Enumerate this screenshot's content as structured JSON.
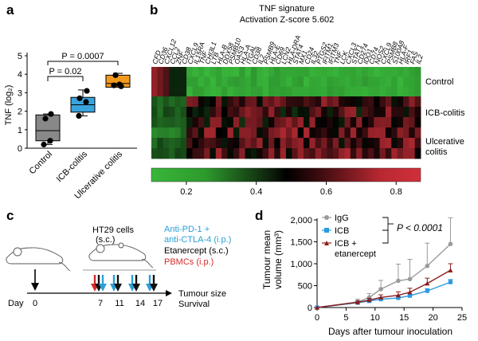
{
  "panels": {
    "a": {
      "letter": "a",
      "ylabel": "TNF (log₂)",
      "yticks": [
        "0",
        "1",
        "2",
        "3",
        "4",
        "5"
      ],
      "categories": [
        "Control",
        "ICB-colitis",
        "Ulcerative colitis"
      ],
      "comparison1": "P = 0.02",
      "comparison2": "P = 0.0007"
    },
    "b": {
      "letter": "b",
      "title_line1": "TNF signature",
      "title_line2": "Activation Z-score 5.602",
      "genes": [
        "CFD",
        "CD36",
        "CXCL12",
        "CCL2",
        "ZNF",
        "CD38",
        "CXCL9",
        "IL15RA",
        "TNF",
        "CHI3L1",
        "LTB",
        "HLA-B",
        "DDX58",
        "PSMB10",
        "OAS3",
        "HLA-A",
        "ITGAL",
        "CD38",
        "IL2",
        "PSMB9",
        "HLA-E",
        "CD69",
        "LCN2",
        "HLA-DRA",
        "STAT4",
        "MX1",
        "CD24",
        "IL32",
        "PTGS2",
        "IFITM1",
        "IFITM3",
        "TNF",
        "LCK",
        "CXCL3",
        "STAT1",
        "CD274",
        "IDO1",
        "CD74",
        "NOS2",
        "CXCL9",
        "PSMB8",
        "S100A8",
        "HLA-F",
        "IRF1",
        "FAS",
        "IL2"
      ],
      "rows": [
        "Control",
        "ICB-colitis",
        "Ulcerative colitis"
      ],
      "scale_ticks": [
        "0.2",
        "0.4",
        "0.6",
        "0.8"
      ]
    },
    "c": {
      "letter": "c",
      "mouse_label_line1": "HT29 cells",
      "mouse_label_line2": "(s.c.)",
      "day_label": "Day",
      "days": [
        "0",
        "7",
        "11",
        "14",
        "17"
      ],
      "legend": {
        "anti_line1": "Anti-PD-1 +",
        "anti_line2": "anti-CTLA-4 (i.p.)",
        "etanercept": "Etanercept (s.c.)",
        "pbmc": "PBMCs (i.p.)"
      },
      "outcome_line1": "Tumour size",
      "outcome_line2": "Survival"
    },
    "d": {
      "letter": "d",
      "ylabel_line1": "Tumour mean",
      "ylabel_line2": "volume (mm³)",
      "xlabel": "Days after tumour inoculation",
      "pvalue": "P < 0.0001",
      "legend": [
        "IgG",
        "ICB",
        "ICB +",
        "etanercept"
      ]
    }
  },
  "colors": {
    "heat_low": "#38b63a",
    "heat_mid": "#000000",
    "heat_high": "#d0303a",
    "box_a_control": "#888888",
    "box_a_icb": "#3aa3dd",
    "box_a_uc": "#f39a1e",
    "anti_text": "#2a9fd8",
    "pbmc_text": "#d52b2b",
    "igg": "#9a9a9a",
    "icb": "#2b9ae0",
    "icb_etanercept": "#8b1d1d"
  },
  "chart_data": [
    {
      "type": "box",
      "ylabel": "TNF (log₂)",
      "ylim": [
        0,
        5
      ],
      "categories": [
        "Control",
        "ICB-colitis",
        "Ulcerative colitis"
      ],
      "boxes": [
        {
          "name": "Control",
          "min": 0.2,
          "q1": 0.4,
          "median": 0.95,
          "q3": 1.8,
          "max": 1.85,
          "points": [
            0.2,
            0.4,
            1.6,
            1.85
          ]
        },
        {
          "name": "ICB-colitis",
          "min": 1.75,
          "q1": 1.95,
          "median": 2.35,
          "q3": 2.75,
          "max": 3.15,
          "points": [
            1.75,
            2.5,
            2.7,
            3.1
          ]
        },
        {
          "name": "Ulcerative colitis",
          "min": 3.3,
          "q1": 3.3,
          "median": 3.5,
          "q3": 3.95,
          "max": 4.05,
          "points": [
            3.35,
            3.4,
            3.45,
            3.95
          ]
        }
      ],
      "annotations": [
        "P = 0.02",
        "P = 0.0007"
      ]
    },
    {
      "type": "heatmap",
      "title": "TNF signature",
      "subtitle": "Activation Z-score 5.602",
      "rows": [
        "Control",
        "ICB-colitis",
        "Ulcerative colitis"
      ],
      "colorbar_ticks": [
        0.2,
        0.4,
        0.6,
        0.8
      ],
      "colorbar_range": [
        0.1,
        0.87
      ]
    },
    {
      "type": "line",
      "xlabel": "Days after tumour inoculation",
      "ylabel": "Tumour mean volume (mm³)",
      "xlim": [
        0,
        25
      ],
      "ylim": [
        0,
        2000
      ],
      "xticks": [
        0,
        5,
        10,
        15,
        20,
        25
      ],
      "yticks": [
        0,
        500,
        1000,
        1500,
        2000
      ],
      "series": [
        {
          "name": "IgG",
          "x": [
            0,
            7,
            9,
            11,
            14,
            16,
            19,
            23
          ],
          "y": [
            0,
            130,
            230,
            420,
            610,
            650,
            950,
            1450
          ],
          "err": [
            0,
            60,
            90,
            200,
            380,
            450,
            520,
            600
          ]
        },
        {
          "name": "ICB",
          "x": [
            0,
            7,
            9,
            11,
            14,
            16,
            19,
            23
          ],
          "y": [
            0,
            110,
            150,
            190,
            220,
            270,
            380,
            580
          ],
          "err": [
            0,
            20,
            25,
            30,
            40,
            40,
            50,
            60
          ]
        },
        {
          "name": "ICB + etanercept",
          "x": [
            0,
            7,
            9,
            11,
            14,
            16,
            19,
            23
          ],
          "y": [
            0,
            120,
            170,
            230,
            280,
            350,
            550,
            850
          ],
          "err": [
            0,
            30,
            40,
            60,
            80,
            90,
            120,
            150
          ]
        }
      ],
      "annotations": [
        "P < 0.0001"
      ]
    }
  ]
}
